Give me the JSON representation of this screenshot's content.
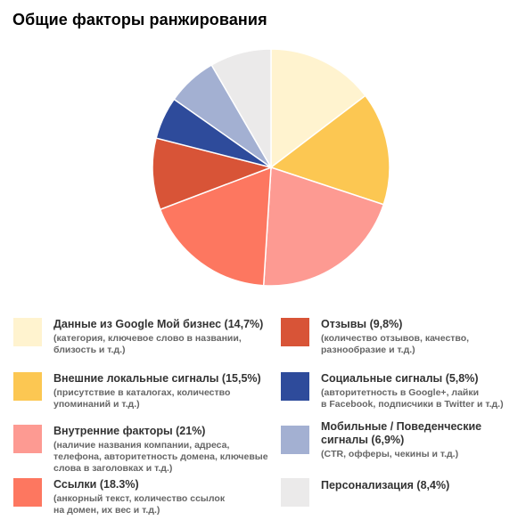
{
  "title": "Общие факторы ранжирования",
  "chart_data": {
    "type": "pie",
    "title": "Общие факторы ранжирования",
    "slices": [
      {
        "label": "Данные из Google Мой бизнес (14,7%)",
        "value": 14.7,
        "color": "#fff3cf",
        "desc": "(категория, ключевое слово в названии,\nблизость и т.д.)"
      },
      {
        "label": "Внешние локальные сигналы (15,5%)",
        "value": 15.5,
        "color": "#fcc752",
        "desc": "(присутствие в каталогах, количество\nупоминаний и т.д.)"
      },
      {
        "label": "Внутренние факторы (21%)",
        "value": 21,
        "color": "#fd9a92",
        "desc": "(наличие названия компании, адреса,\nтелефона, авторитетность домена, ключевые\nслова в заголовках и т.д.)"
      },
      {
        "label": "Ссылки (18.3%)",
        "value": 18.3,
        "color": "#fd7760",
        "desc": "(анкорный текст, количество ссылок\nна домен, их вес и т.д.)"
      },
      {
        "label": "Отзывы (9,8%)",
        "value": 9.8,
        "color": "#d85437",
        "desc": "(количество отзывов, качество,\nразнообразие и т.д.)"
      },
      {
        "label": "Социальные сигналы (5,8%)",
        "value": 5.8,
        "color": "#2e4b9b",
        "desc": "(авторитетность в Google+, лайки\nв Facebook, подписчики в Twitter и т.д.)"
      },
      {
        "label": "Мобильные / Поведенческие\nсигналы (6,9%)",
        "value": 6.9,
        "color": "#a3b0d2",
        "desc": "(CTR, офферы, чекины и т.д.)"
      },
      {
        "label": "Персонализация (8,4%)",
        "value": 8.4,
        "color": "#ebeaea",
        "desc": ""
      }
    ],
    "legend_placement": "bottom"
  }
}
